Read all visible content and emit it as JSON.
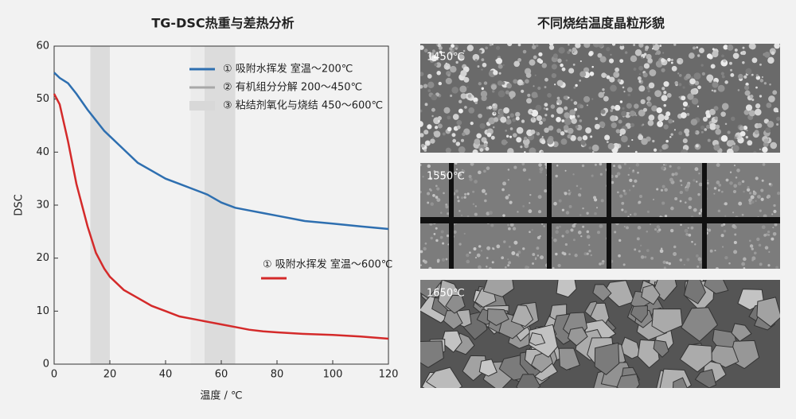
{
  "chart_data": {
    "type": "line",
    "title": "TG-DSC热重与差热分析",
    "x_label": "温度 / ℃",
    "y_label": "DSC",
    "x": [
      0,
      2,
      5,
      8,
      10,
      12,
      15,
      18,
      20,
      25,
      30,
      35,
      40,
      45,
      50,
      55,
      60,
      65,
      70,
      75,
      80,
      90,
      100,
      110,
      120
    ],
    "series": [
      {
        "name": "① 吸附水挥发 室温～200℃",
        "color": "#2e6fb0",
        "values": [
          55,
          54,
          53,
          51,
          49.5,
          48,
          46,
          44,
          43,
          40.5,
          38,
          36.5,
          35,
          34,
          33,
          32,
          30.5,
          29.5,
          29,
          28.5,
          28,
          27,
          26.5,
          26,
          25.5
        ]
      },
      {
        "name": "① 吸附水挥发 室温～600℃",
        "color": "#d42a2a",
        "values": [
          51,
          49,
          42,
          34,
          30,
          26,
          21,
          18,
          16.5,
          14,
          12.5,
          11,
          10,
          9,
          8.5,
          8,
          7.5,
          7,
          6.5,
          6.2,
          6,
          5.7,
          5.5,
          5.2,
          4.8
        ]
      }
    ],
    "legend_extra": [
      {
        "name": "② 有机组分分解 200～450℃",
        "color": "#a8a8a8",
        "style": "line"
      },
      {
        "name": "③ 粘结剂氧化与烧结 450～600℃",
        "color": "#d8d8d8",
        "style": "box"
      }
    ],
    "shaded_regions": [
      [
        13,
        20
      ],
      [
        49,
        54
      ],
      [
        54,
        65
      ]
    ],
    "xlim": [
      0,
      120
    ],
    "xticks": [
      0,
      20,
      40,
      60,
      80,
      100,
      120
    ],
    "ylim": [
      0,
      60
    ],
    "yticks": [
      0,
      10,
      20,
      30,
      40,
      50,
      60
    ]
  },
  "images_panel": {
    "title": "不同烧结温度晶粒形貌",
    "labels": [
      "1450℃",
      "1550℃",
      "1650℃"
    ]
  }
}
